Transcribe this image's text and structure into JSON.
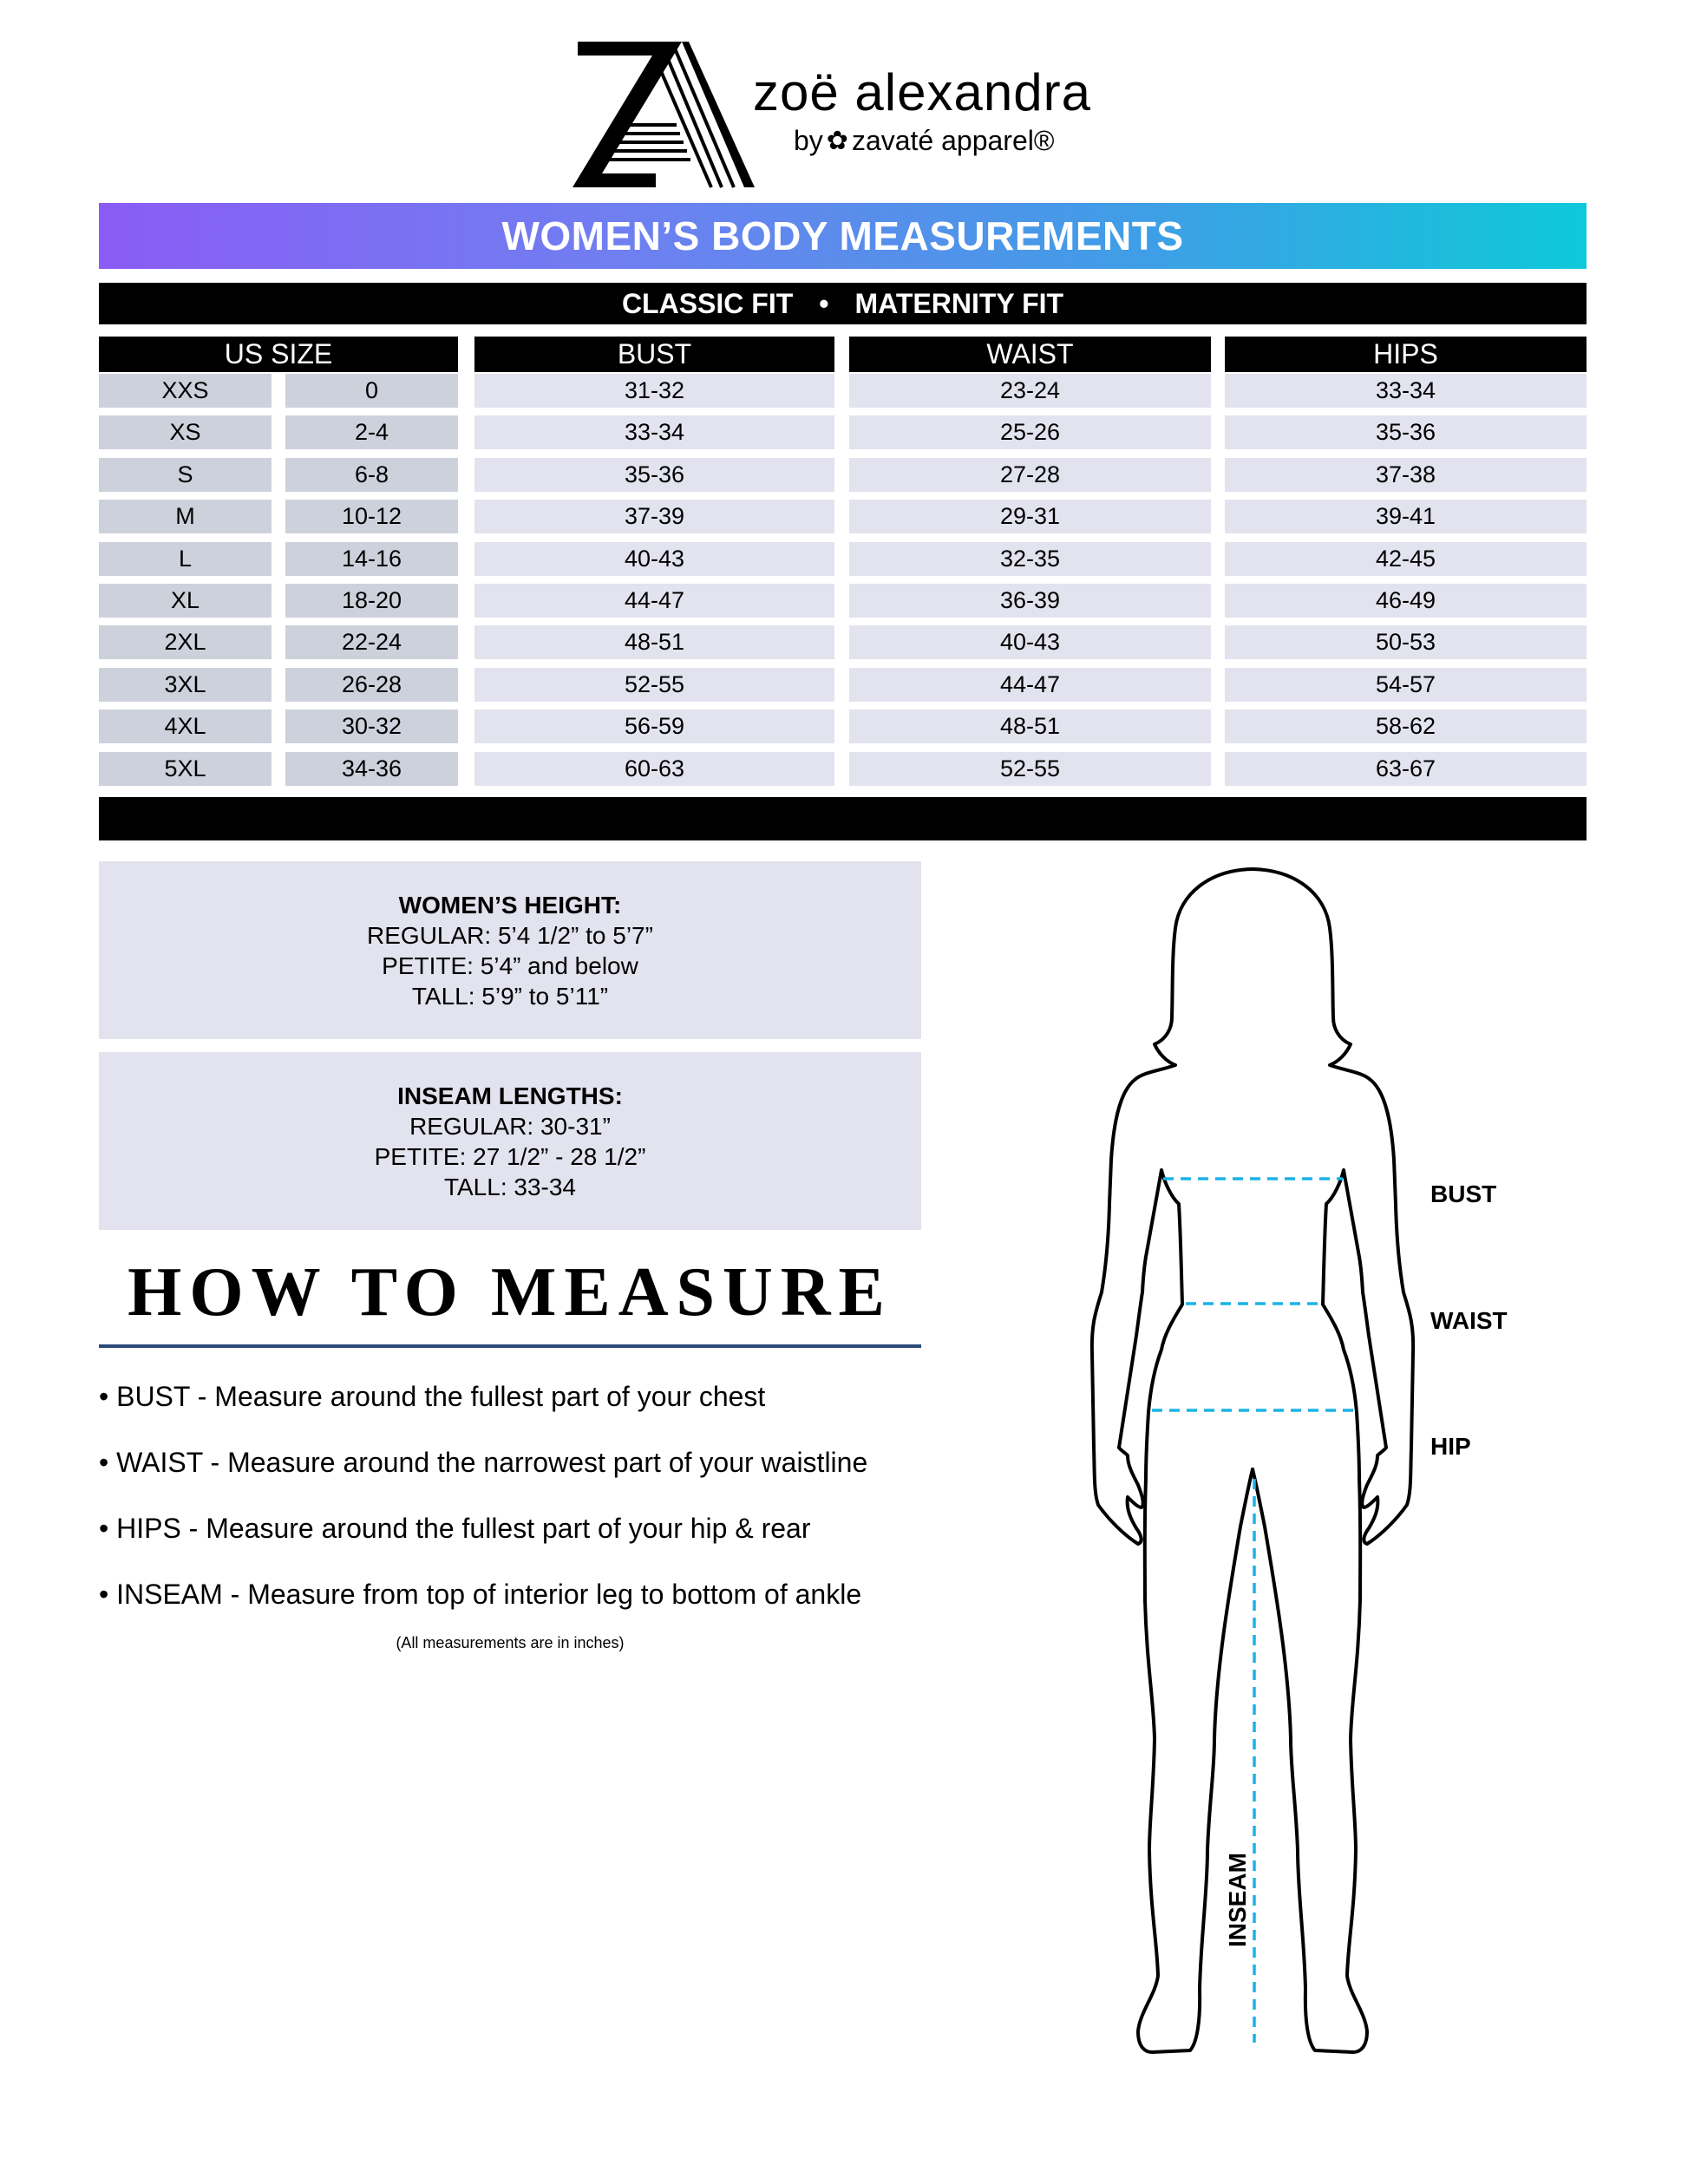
{
  "brand": {
    "name": "zoë alexandra",
    "by": "by",
    "sub": "zavaté apparel®",
    "logo_letters": "ZA"
  },
  "title": "WOMEN’S BODY MEASUREMENTS",
  "fits": [
    "CLASSIC FIT",
    "•",
    "MATERNITY FIT"
  ],
  "colors": {
    "banner_start": "#8a5cf6",
    "banner_end": "#0ec9d9",
    "size_cell": "#cdd1dc",
    "value_cell": "#e2e3ee",
    "measure_line": "#1ab3e6",
    "underline": "#2c4a7a"
  },
  "table": {
    "headers": {
      "size": "US SIZE",
      "bust": "BUST",
      "waist": "WAIST",
      "hips": "HIPS"
    },
    "rows": [
      {
        "size": "XXS",
        "num": "0",
        "bust": "31-32",
        "waist": "23-24",
        "hips": "33-34"
      },
      {
        "size": "XS",
        "num": "2-4",
        "bust": "33-34",
        "waist": "25-26",
        "hips": "35-36"
      },
      {
        "size": "S",
        "num": "6-8",
        "bust": "35-36",
        "waist": "27-28",
        "hips": "37-38"
      },
      {
        "size": "M",
        "num": "10-12",
        "bust": "37-39",
        "waist": "29-31",
        "hips": "39-41"
      },
      {
        "size": "L",
        "num": "14-16",
        "bust": "40-43",
        "waist": "32-35",
        "hips": "42-45"
      },
      {
        "size": "XL",
        "num": "18-20",
        "bust": "44-47",
        "waist": "36-39",
        "hips": "46-49"
      },
      {
        "size": "2XL",
        "num": "22-24",
        "bust": "48-51",
        "waist": "40-43",
        "hips": "50-53"
      },
      {
        "size": "3XL",
        "num": "26-28",
        "bust": "52-55",
        "waist": "44-47",
        "hips": "54-57"
      },
      {
        "size": "4XL",
        "num": "30-32",
        "bust": "56-59",
        "waist": "48-51",
        "hips": "58-62"
      },
      {
        "size": "5XL",
        "num": "34-36",
        "bust": "60-63",
        "waist": "52-55",
        "hips": "63-67"
      }
    ]
  },
  "height": {
    "title": "WOMEN’S HEIGHT:",
    "lines": [
      "REGULAR: 5’4 1/2” to 5’7”",
      "PETITE: 5’4” and below",
      "TALL: 5’9” to 5’11”"
    ]
  },
  "inseam": {
    "title": "INSEAM LENGTHS:",
    "lines": [
      "REGULAR: 30-31”",
      "PETITE: 27 1/2” - 28 1/2”",
      "TALL: 33-34"
    ]
  },
  "how_to": {
    "title": "HOW TO MEASURE",
    "bullets": [
      "• BUST - Measure around the fullest part of your chest",
      "• WAIST - Measure around the narrowest part of your waistline",
      "• HIPS - Measure around the fullest part of your hip & rear",
      "• INSEAM - Measure from top of interior leg to bottom of ankle"
    ],
    "note": "(All measurements are in inches)"
  },
  "figure": {
    "labels": {
      "bust": "BUST",
      "waist": "WAIST",
      "hip": "HIP",
      "inseam": "INSEAM"
    }
  }
}
